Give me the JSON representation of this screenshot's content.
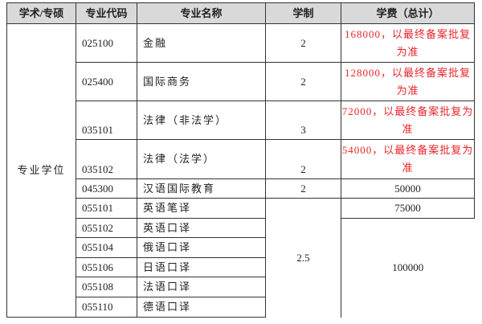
{
  "headers": [
    "学术/专硕",
    "专业代码",
    "专业名称",
    "学制",
    "学费（总计）"
  ],
  "category": "专业学位",
  "rows": [
    {
      "code": "025100",
      "name": "金融",
      "years": "2",
      "fee": "168000，以最终备案批复为准",
      "fee_color": "#e8262a"
    },
    {
      "code": "025400",
      "name": "国际商务",
      "years": "2",
      "fee": "128000，以最终备案批复为准",
      "fee_color": "#e8262a"
    },
    {
      "code": "035101",
      "name": "法律（非法学）",
      "years": "3",
      "fee": "72000，以最终备案批复为准",
      "fee_color": "#e8262a"
    },
    {
      "code": "035102",
      "name": "法律（法学）",
      "years": "2",
      "fee": "54000，以最终备案批复为准",
      "fee_color": "#e8262a"
    },
    {
      "code": "045300",
      "name": "汉语国际教育",
      "years": "2",
      "fee": "50000"
    },
    {
      "code": "055101",
      "name": "英语笔译",
      "years": "2.5",
      "fee": "75000"
    },
    {
      "code": "055102",
      "name": "英语口译",
      "fee": "100000"
    },
    {
      "code": "055104",
      "name": "俄语口译"
    },
    {
      "code": "055106",
      "name": "日语口译"
    },
    {
      "code": "055108",
      "name": "法语口译"
    },
    {
      "code": "055110",
      "name": "德语口译"
    }
  ]
}
